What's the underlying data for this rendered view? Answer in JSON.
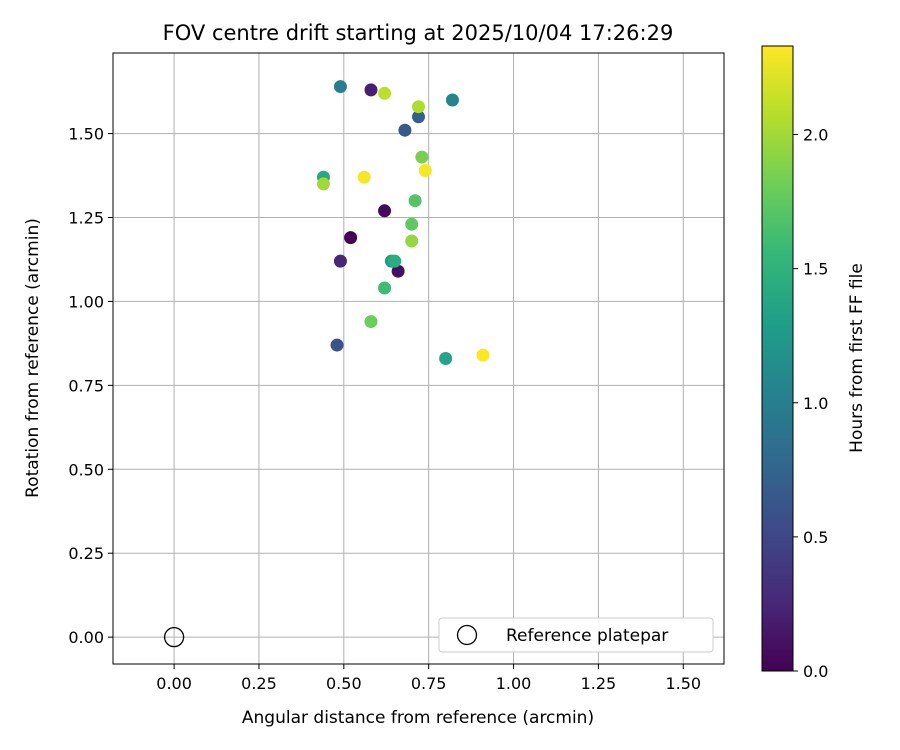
{
  "chart_data": {
    "type": "scatter",
    "title": "FOV centre drift starting at 2025/10/04 17:26:29",
    "xlabel": "Angular distance from reference (arcmin)",
    "ylabel": "Rotation from reference (arcmin)",
    "xlim": [
      -0.18,
      1.62
    ],
    "ylim": [
      -0.08,
      1.74
    ],
    "xticks": [
      0.0,
      0.25,
      0.5,
      0.75,
      1.0,
      1.25,
      1.5
    ],
    "xtick_labels": [
      "0.00",
      "0.25",
      "0.50",
      "0.75",
      "1.00",
      "1.25",
      "1.50"
    ],
    "yticks": [
      0.0,
      0.25,
      0.5,
      0.75,
      1.0,
      1.25,
      1.5
    ],
    "ytick_labels": [
      "0.00",
      "0.25",
      "0.50",
      "0.75",
      "1.00",
      "1.25",
      "1.50"
    ],
    "grid": true,
    "colorbar": {
      "label": "Hours from first FF file",
      "colormap": "viridis",
      "range": [
        0.0,
        2.33
      ],
      "ticks": [
        0.0,
        0.5,
        1.0,
        1.5,
        2.0
      ],
      "tick_labels": [
        "0.0",
        "0.5",
        "1.0",
        "1.5",
        "2.0"
      ]
    },
    "reference": {
      "x": 0.0,
      "y": 0.0,
      "label": "Reference platepar"
    },
    "legend": {
      "position": "lower-right",
      "entries": [
        "Reference platepar"
      ]
    },
    "points": [
      {
        "x": 0.52,
        "y": 1.19,
        "hours": 0.0
      },
      {
        "x": 0.62,
        "y": 1.27,
        "hours": 0.05
      },
      {
        "x": 0.66,
        "y": 1.09,
        "hours": 0.1
      },
      {
        "x": 0.58,
        "y": 1.63,
        "hours": 0.2
      },
      {
        "x": 0.49,
        "y": 1.12,
        "hours": 0.25
      },
      {
        "x": 0.48,
        "y": 0.87,
        "hours": 0.6
      },
      {
        "x": 0.68,
        "y": 1.51,
        "hours": 0.65
      },
      {
        "x": 0.72,
        "y": 1.55,
        "hours": 0.7
      },
      {
        "x": 0.49,
        "y": 1.64,
        "hours": 1.0
      },
      {
        "x": 0.82,
        "y": 1.6,
        "hours": 1.05
      },
      {
        "x": 0.64,
        "y": 1.12,
        "hours": 1.3
      },
      {
        "x": 0.8,
        "y": 0.83,
        "hours": 1.35
      },
      {
        "x": 0.44,
        "y": 1.37,
        "hours": 1.4
      },
      {
        "x": 0.65,
        "y": 1.12,
        "hours": 1.45
      },
      {
        "x": 0.62,
        "y": 1.04,
        "hours": 1.6
      },
      {
        "x": 0.71,
        "y": 1.3,
        "hours": 1.7
      },
      {
        "x": 0.7,
        "y": 1.23,
        "hours": 1.75
      },
      {
        "x": 0.58,
        "y": 0.94,
        "hours": 1.8
      },
      {
        "x": 0.73,
        "y": 1.43,
        "hours": 1.85
      },
      {
        "x": 0.7,
        "y": 1.18,
        "hours": 1.95
      },
      {
        "x": 0.44,
        "y": 1.35,
        "hours": 2.0
      },
      {
        "x": 0.72,
        "y": 1.58,
        "hours": 2.05
      },
      {
        "x": 0.62,
        "y": 1.62,
        "hours": 2.1
      },
      {
        "x": 0.56,
        "y": 1.37,
        "hours": 2.3
      },
      {
        "x": 0.74,
        "y": 1.39,
        "hours": 2.3
      },
      {
        "x": 0.91,
        "y": 0.84,
        "hours": 2.33
      }
    ]
  }
}
